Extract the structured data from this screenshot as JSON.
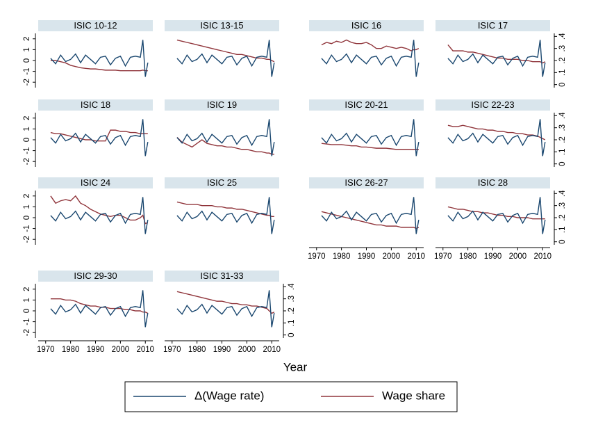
{
  "chart_data": {
    "type": "line",
    "xlabel": "Year",
    "x": [
      1972,
      1974,
      1976,
      1978,
      1980,
      1982,
      1984,
      1986,
      1988,
      1990,
      1992,
      1994,
      1996,
      1998,
      2000,
      2002,
      2004,
      2006,
      2008,
      2009,
      2010,
      2011
    ],
    "xlim": [
      1967,
      2013
    ],
    "xticks": [
      1970,
      1980,
      1990,
      2000,
      2010
    ],
    "ylim": [
      -2.5,
      2.5
    ],
    "yticks": [
      -2,
      -1,
      0,
      1,
      2
    ],
    "y2lim": [
      -0.025,
      0.425
    ],
    "y2ticks": [
      0,
      {
        "value": 0.1,
        "label": ".1"
      },
      {
        "value": 0.2,
        "label": ".2"
      },
      {
        "value": 0.3,
        "label": ".3"
      },
      {
        "value": 0.4,
        "label": ".4"
      }
    ],
    "series": [
      {
        "name": "Δ(Wage rate)",
        "color": "#1a476f",
        "values": [
          0.2,
          -0.3,
          0.5,
          -0.1,
          0.1,
          0.6,
          -0.2,
          0.5,
          0.1,
          -0.3,
          0.3,
          0.4,
          -0.4,
          0.2,
          0.4,
          -0.5,
          0.3,
          0.4,
          0.3,
          1.9,
          -1.5,
          -0.2
        ]
      },
      {
        "name": "Wage share",
        "color": "#90353b",
        "axis": "y2"
      }
    ],
    "panels": [
      {
        "title": "ISIC 10-12",
        "values": [
          0.2,
          0.2,
          0.19,
          0.18,
          0.16,
          0.15,
          0.14,
          0.135,
          0.13,
          0.13,
          0.125,
          0.12,
          0.12,
          0.12,
          0.115,
          0.115,
          0.115,
          0.115,
          0.115,
          0.12,
          0.115,
          0.115
        ]
      },
      {
        "title": "ISIC 13-15",
        "values": [
          0.37,
          0.36,
          0.35,
          0.34,
          0.33,
          0.32,
          0.31,
          0.3,
          0.29,
          0.28,
          0.27,
          0.26,
          0.25,
          0.25,
          0.24,
          0.23,
          0.22,
          0.22,
          0.21,
          0.21,
          0.2,
          0.19
        ]
      },
      {
        "title": "ISIC 16",
        "values": [
          0.33,
          0.35,
          0.34,
          0.36,
          0.35,
          0.37,
          0.35,
          0.34,
          0.34,
          0.35,
          0.33,
          0.3,
          0.3,
          0.32,
          0.31,
          0.3,
          0.31,
          0.3,
          0.28,
          0.29,
          0.29,
          0.3
        ]
      },
      {
        "title": "ISIC 17",
        "values": [
          0.33,
          0.28,
          0.28,
          0.28,
          0.27,
          0.27,
          0.26,
          0.25,
          0.24,
          0.23,
          0.22,
          0.22,
          0.21,
          0.21,
          0.21,
          0.2,
          0.2,
          0.19,
          0.19,
          0.19,
          0.18,
          0.19
        ]
      },
      {
        "title": "ISIC 18",
        "values": [
          0.26,
          0.25,
          0.25,
          0.24,
          0.23,
          0.22,
          0.21,
          0.2,
          0.2,
          0.19,
          0.19,
          0.19,
          0.28,
          0.28,
          0.27,
          0.27,
          0.26,
          0.26,
          0.25,
          0.25,
          0.25,
          0.25
        ]
      },
      {
        "title": "ISIC 19",
        "values": [
          0.22,
          0.18,
          0.16,
          0.14,
          0.17,
          0.2,
          0.17,
          0.16,
          0.15,
          0.15,
          0.14,
          0.14,
          0.13,
          0.12,
          0.12,
          0.11,
          0.1,
          0.1,
          0.09,
          0.09,
          0.08,
          0.08
        ]
      },
      {
        "title": "ISIC 20-21",
        "values": [
          0.17,
          0.165,
          0.16,
          0.16,
          0.16,
          0.155,
          0.15,
          0.15,
          0.14,
          0.14,
          0.135,
          0.13,
          0.13,
          0.13,
          0.125,
          0.12,
          0.12,
          0.12,
          0.12,
          0.12,
          0.12,
          0.12
        ]
      },
      {
        "title": "ISIC 22-23",
        "values": [
          0.32,
          0.31,
          0.31,
          0.32,
          0.31,
          0.3,
          0.29,
          0.29,
          0.28,
          0.28,
          0.27,
          0.27,
          0.26,
          0.26,
          0.25,
          0.25,
          0.24,
          0.24,
          0.23,
          0.22,
          0.21,
          0.2
        ]
      },
      {
        "title": "ISIC 24",
        "values": [
          0.38,
          0.32,
          0.34,
          0.35,
          0.34,
          0.38,
          0.32,
          0.3,
          0.27,
          0.25,
          0.23,
          0.22,
          0.21,
          0.22,
          0.22,
          0.2,
          0.18,
          0.18,
          0.2,
          0.22,
          0.15,
          0.16
        ]
      },
      {
        "title": "ISIC 25",
        "values": [
          0.33,
          0.32,
          0.31,
          0.31,
          0.31,
          0.3,
          0.3,
          0.3,
          0.29,
          0.29,
          0.28,
          0.28,
          0.27,
          0.27,
          0.26,
          0.25,
          0.24,
          0.23,
          0.22,
          0.22,
          0.21,
          0.21
        ]
      },
      {
        "title": "ISIC 26-27",
        "values": [
          0.25,
          0.24,
          0.23,
          0.22,
          0.21,
          0.2,
          0.19,
          0.18,
          0.17,
          0.16,
          0.15,
          0.14,
          0.14,
          0.13,
          0.13,
          0.13,
          0.12,
          0.12,
          0.12,
          0.12,
          0.11,
          0.12
        ]
      },
      {
        "title": "ISIC 28",
        "values": [
          0.29,
          0.28,
          0.27,
          0.27,
          0.26,
          0.25,
          0.25,
          0.24,
          0.24,
          0.23,
          0.22,
          0.22,
          0.21,
          0.21,
          0.2,
          0.2,
          0.2,
          0.19,
          0.19,
          0.19,
          0.19,
          0.19
        ]
      },
      {
        "title": "ISIC 29-30",
        "values": [
          0.3,
          0.3,
          0.3,
          0.29,
          0.29,
          0.28,
          0.26,
          0.25,
          0.24,
          0.24,
          0.23,
          0.23,
          0.22,
          0.22,
          0.22,
          0.21,
          0.21,
          0.2,
          0.2,
          0.19,
          0.19,
          0.18
        ]
      },
      {
        "title": "ISIC 31-33",
        "values": [
          0.36,
          0.35,
          0.34,
          0.33,
          0.32,
          0.31,
          0.3,
          0.29,
          0.28,
          0.28,
          0.27,
          0.26,
          0.26,
          0.25,
          0.25,
          0.24,
          0.24,
          0.23,
          0.22,
          0.2,
          0.18,
          0.19
        ]
      }
    ]
  }
}
